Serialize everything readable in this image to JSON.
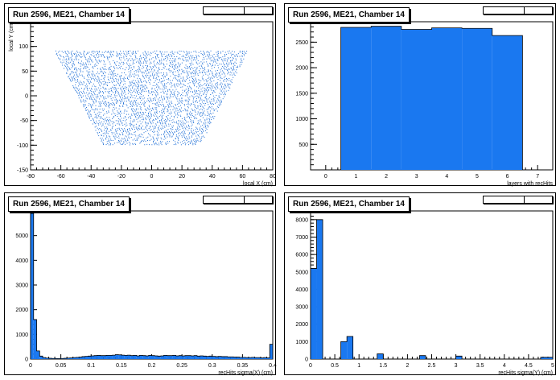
{
  "pads": [
    {
      "title": "Run 2596, ME21, Chamber 14",
      "statbox": [
        "",
        ""
      ]
    },
    {
      "title": "Run 2596, ME21, Chamber 14",
      "statbox": [
        "",
        ""
      ]
    },
    {
      "title": "Run 2596, ME21, Chamber 14",
      "statbox": [
        "",
        ""
      ]
    },
    {
      "title": "Run 2596, ME21, Chamber 14",
      "statbox": [
        "",
        ""
      ]
    }
  ],
  "colors": {
    "fill": "#1a78f0",
    "marker": "#1f6fd6"
  },
  "chart_data": [
    {
      "type": "scatter",
      "title": "Run 2596, ME21, Chamber 14",
      "xlabel": "local X (cm)",
      "ylabel": "local Y (cm)",
      "xlim": [
        -80,
        80
      ],
      "ylim": [
        -150,
        150
      ],
      "xticks": [
        -80,
        -60,
        -40,
        -20,
        0,
        20,
        40,
        60,
        80
      ],
      "yticks": [
        -150,
        -100,
        -50,
        0,
        50,
        100,
        150
      ],
      "region": {
        "y_top": 92,
        "y_bottom": -98,
        "x_halfwidth_top": 64,
        "x_halfwidth_bottom": 32
      }
    },
    {
      "type": "bar",
      "title": "Run 2596, ME21, Chamber 14",
      "xlabel": "layers with recHits",
      "ylabel": "",
      "xlim": [
        -0.5,
        7.5
      ],
      "ylim": [
        0,
        2900
      ],
      "xticks": [
        0,
        1,
        2,
        3,
        4,
        5,
        6,
        7
      ],
      "yticks": [
        500,
        1000,
        1500,
        2000,
        2500
      ],
      "bin_width": 1,
      "bin_centers": [
        1,
        2,
        3,
        4,
        5,
        6
      ],
      "values": [
        2790,
        2810,
        2750,
        2780,
        2770,
        2630
      ]
    },
    {
      "type": "bar",
      "title": "Run 2596, ME21, Chamber 14",
      "xlabel": "recHits sigma(X) (cm)",
      "ylabel": "",
      "xlim": [
        0,
        0.4
      ],
      "ylim": [
        0,
        6000
      ],
      "xticks": [
        0,
        0.05,
        0.1,
        0.15,
        0.2,
        0.25,
        0.3,
        0.35,
        0.4
      ],
      "xticklabels": [
        "0",
        "0.05",
        "0.1",
        "0.15",
        "0.2",
        "0.25",
        "0.3",
        "0.35",
        "0.4"
      ],
      "yticks": [
        0,
        1000,
        2000,
        3000,
        4000,
        5000,
        6000
      ],
      "bin_width": 0.005,
      "values": [
        5900,
        1600,
        330,
        120,
        60,
        40,
        30,
        25,
        20,
        20,
        25,
        30,
        40,
        50,
        60,
        70,
        80,
        100,
        110,
        120,
        130,
        140,
        150,
        140,
        140,
        150,
        150,
        160,
        180,
        170,
        160,
        150,
        160,
        140,
        150,
        130,
        150,
        140,
        130,
        150,
        140,
        130,
        120,
        130,
        150,
        140,
        140,
        150,
        130,
        140,
        130,
        140,
        140,
        130,
        140,
        120,
        130,
        120,
        110,
        120,
        110,
        100,
        110,
        100,
        100,
        90,
        90,
        80,
        80,
        70,
        70,
        60,
        60,
        70,
        60,
        60,
        50,
        60,
        50,
        600
      ]
    },
    {
      "type": "bar",
      "title": "Run 2596, ME21, Chamber 14",
      "xlabel": "recHits sigma(Y) (cm)",
      "ylabel": "",
      "xlim": [
        0,
        5
      ],
      "ylim": [
        0,
        8500
      ],
      "xticks": [
        0,
        0.5,
        1,
        1.5,
        2,
        2.5,
        3,
        3.5,
        4,
        4.5,
        5
      ],
      "xticklabels": [
        "0",
        "0.5",
        "1",
        "1.5",
        "2",
        "2.5",
        "3",
        "3.5",
        "4",
        "4.5",
        "5"
      ],
      "yticks": [
        0,
        1000,
        2000,
        3000,
        4000,
        5000,
        6000,
        7000,
        8000
      ],
      "bin_width": 0.125,
      "values": [
        5200,
        8000,
        0,
        0,
        0,
        1000,
        1300,
        0,
        0,
        0,
        0,
        300,
        0,
        0,
        0,
        0,
        0,
        0,
        200,
        0,
        0,
        0,
        0,
        0,
        170,
        0,
        0,
        0,
        0,
        0,
        0,
        0,
        0,
        0,
        0,
        0,
        0,
        0,
        100,
        100
      ]
    }
  ]
}
